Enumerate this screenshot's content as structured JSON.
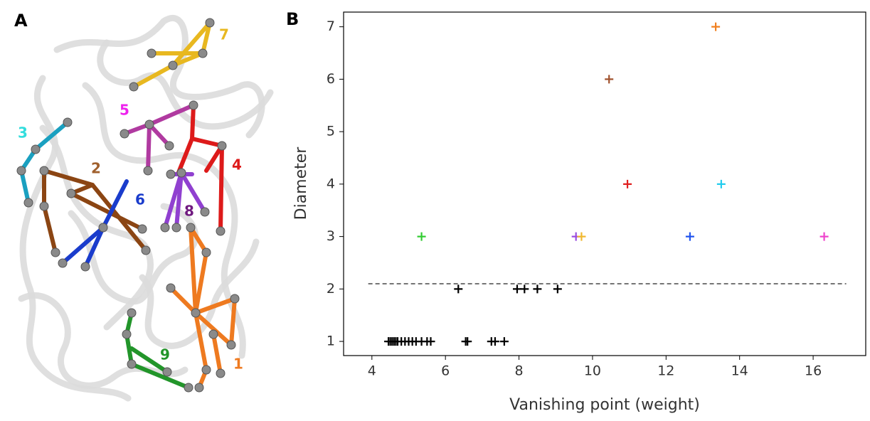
{
  "panels": [
    "A",
    "B"
  ],
  "structure_labels": [
    "1",
    "2",
    "3",
    "4",
    "5",
    "6",
    "7",
    "8",
    "9"
  ],
  "chart_data": {
    "type": "scatter",
    "x_label": "Vanishing point (weight)",
    "y_label": "Diameter",
    "x": [
      5.35,
      9.55,
      9.7,
      10.45,
      10.95,
      12.65,
      13.35,
      13.5,
      16.3,
      6.35,
      7.95,
      8.15,
      8.5,
      9.05,
      4.45,
      4.5,
      4.55,
      4.6,
      4.65,
      4.7,
      4.8,
      4.9,
      5.0,
      5.1,
      5.2,
      5.35,
      5.5,
      5.6,
      6.55,
      6.6,
      7.25,
      7.35,
      7.6
    ],
    "values": [
      3,
      3,
      3,
      6,
      4,
      3,
      7,
      4,
      3,
      2,
      2,
      2,
      2,
      2,
      1,
      1,
      1,
      1,
      1,
      1,
      1,
      1,
      1,
      1,
      1,
      1,
      1,
      1,
      1,
      1,
      1,
      1,
      1
    ],
    "colors": [
      "#33cc33",
      "#9a4de0",
      "#f0b830",
      "#a0522d",
      "#e02020",
      "#2255ee",
      "#f08020",
      "#22ccee",
      "#ee44cc",
      "#000000",
      "#000000",
      "#000000",
      "#000000",
      "#000000",
      "#000000",
      "#000000",
      "#000000",
      "#000000",
      "#000000",
      "#000000",
      "#000000",
      "#000000",
      "#000000",
      "#000000",
      "#000000",
      "#000000",
      "#000000",
      "#000000",
      "#000000",
      "#000000",
      "#000000",
      "#000000",
      "#000000"
    ],
    "threshold": {
      "y": 2.1,
      "x": [
        3.9,
        16.9
      ]
    },
    "xlim": [
      3.23,
      17.43
    ],
    "ylim": [
      0.73,
      7.28
    ],
    "xticks": [
      4,
      6,
      8,
      10,
      12,
      14,
      16
    ],
    "yticks": [
      1,
      2,
      3,
      4,
      5,
      6,
      7
    ]
  }
}
